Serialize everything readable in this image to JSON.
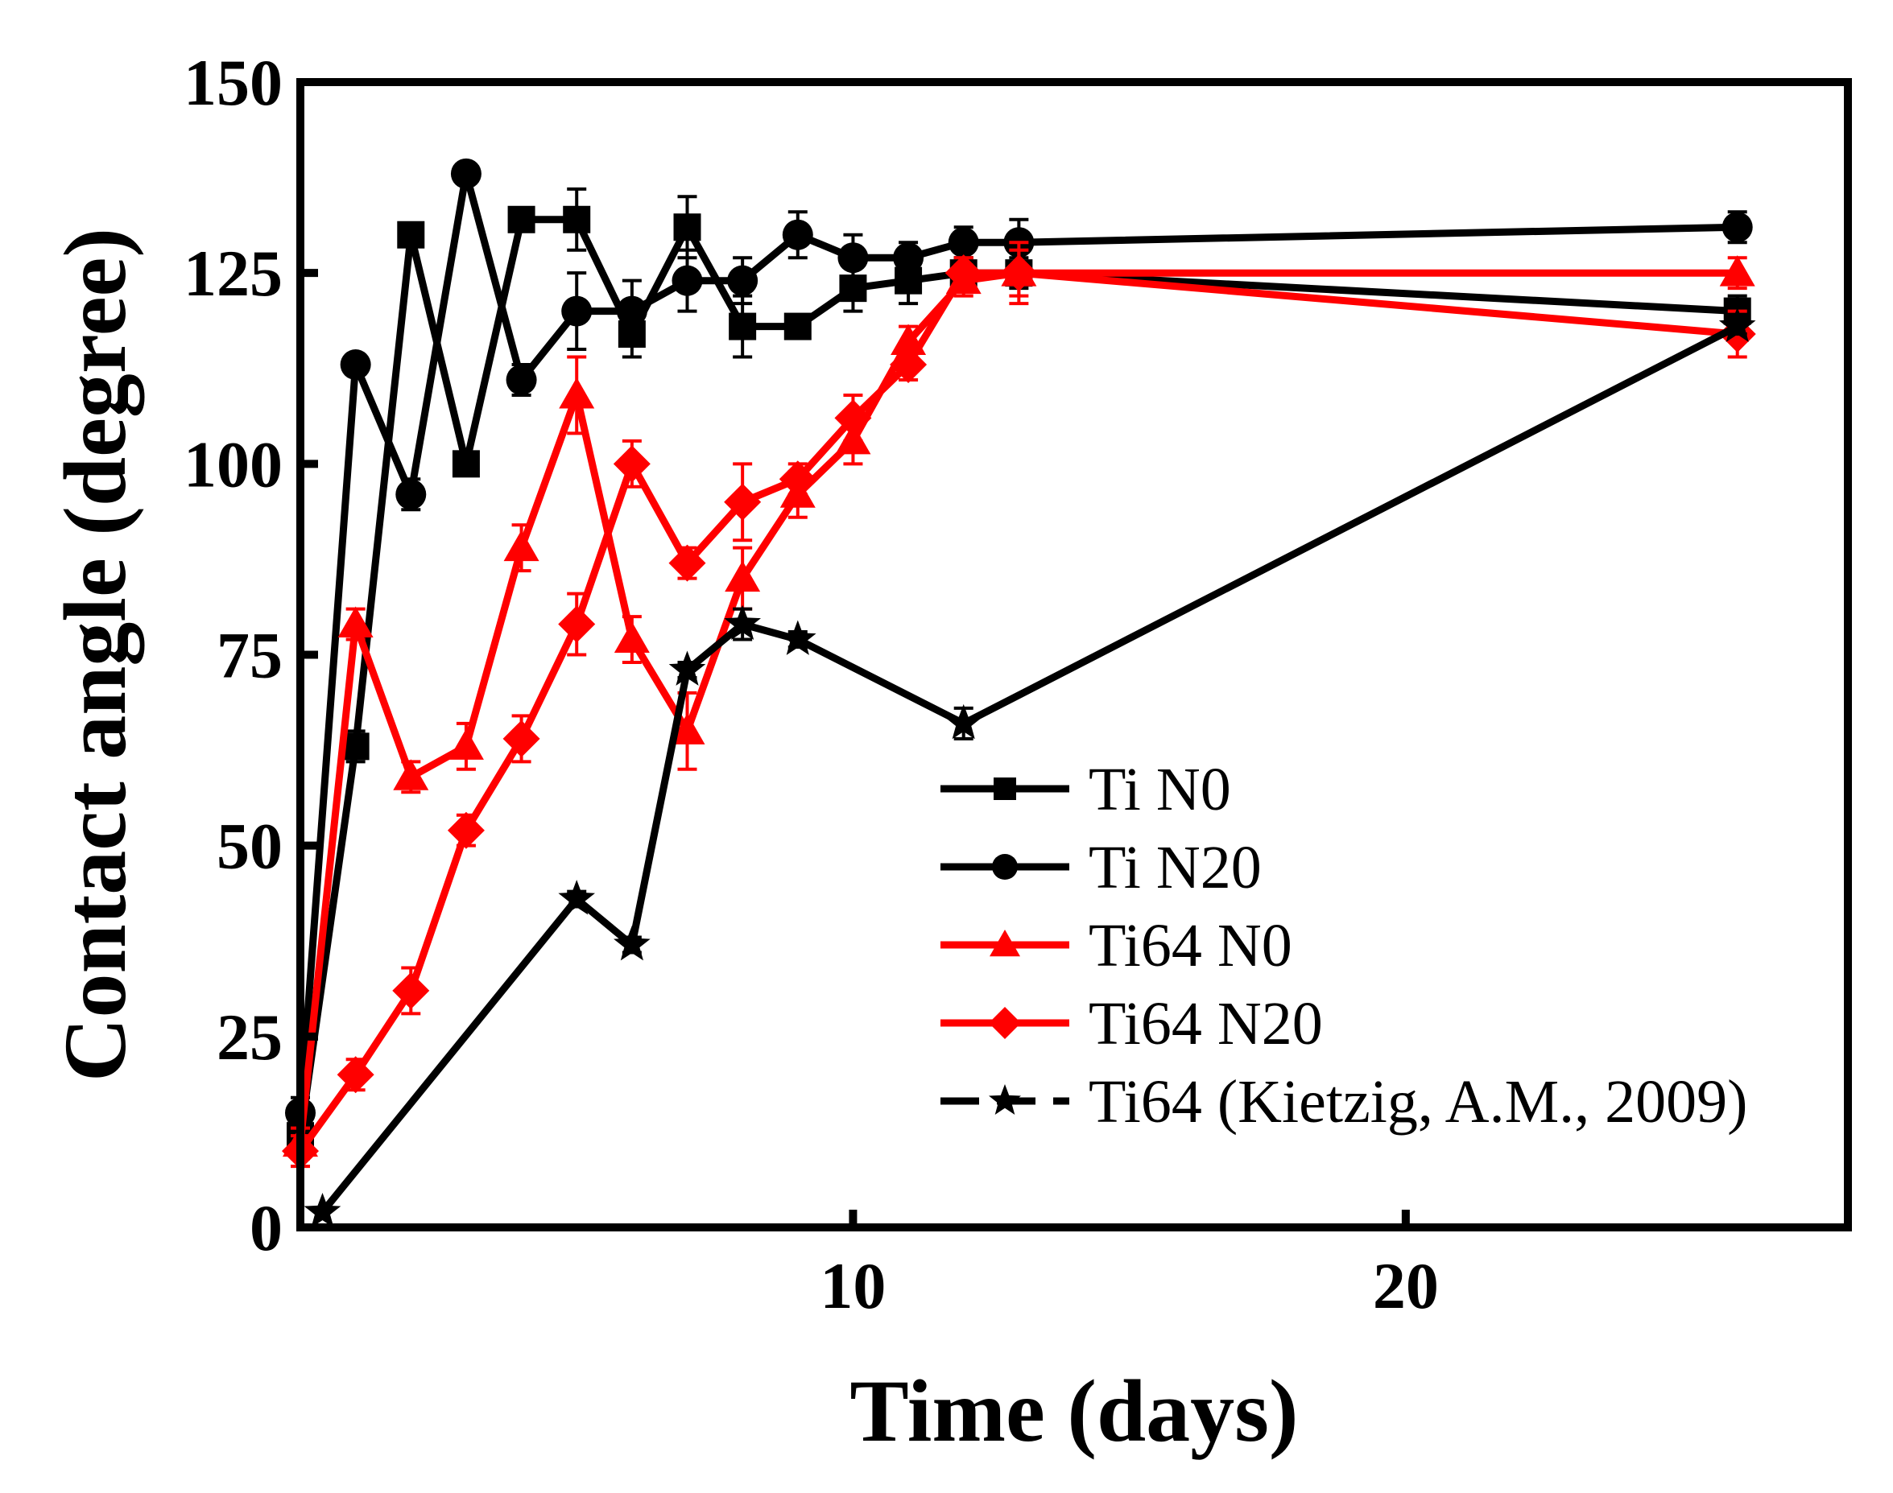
{
  "chart_data": {
    "type": "line",
    "title": "",
    "xlabel": "Time (days)",
    "ylabel": "Contact angle (degree)",
    "xlim": [
      0,
      28
    ],
    "ylim": [
      0,
      150
    ],
    "xticks": [
      10,
      20
    ],
    "yticks": [
      0,
      25,
      50,
      75,
      100,
      125,
      150
    ],
    "legend_position": "bottom-right",
    "series": [
      {
        "name": "Ti N0",
        "color": "#000000",
        "marker": "square",
        "dash": false,
        "x": [
          0,
          1,
          2,
          3,
          4,
          5,
          6,
          7,
          8,
          9,
          10,
          11,
          12,
          13,
          26
        ],
        "y": [
          12,
          63,
          130,
          100,
          132,
          132,
          117,
          131,
          118,
          118,
          123,
          124,
          125,
          125,
          120
        ],
        "err": [
          2,
          2,
          1,
          1,
          1,
          4,
          3,
          4,
          4,
          1,
          3,
          3,
          2,
          2,
          2
        ]
      },
      {
        "name": "Ti N20",
        "color": "#000000",
        "marker": "circle",
        "dash": false,
        "x": [
          0,
          1,
          2,
          3,
          4,
          5,
          6,
          7,
          8,
          9,
          10,
          11,
          12,
          13,
          26
        ],
        "y": [
          15,
          113,
          96,
          138,
          111,
          120,
          120,
          124,
          124,
          130,
          127,
          127,
          129,
          129,
          131
        ],
        "err": [
          2,
          1,
          2,
          1,
          2,
          5,
          4,
          4,
          3,
          3,
          3,
          2,
          2,
          3,
          2
        ]
      },
      {
        "name": "Ti64 N0",
        "color": "#ff0000",
        "marker": "triangle",
        "dash": false,
        "x": [
          0,
          1,
          2,
          3,
          4,
          5,
          6,
          7,
          8,
          9,
          10,
          11,
          12,
          13,
          26
        ],
        "y": [
          11,
          79,
          59,
          63,
          89,
          109,
          77,
          65,
          85,
          96,
          103,
          116,
          124,
          125,
          125
        ],
        "err": [
          2,
          2,
          2,
          3,
          3,
          5,
          3,
          5,
          4,
          3,
          3,
          2,
          2,
          3,
          2
        ]
      },
      {
        "name": "Ti64 N20",
        "color": "#ff0000",
        "marker": "diamond",
        "dash": false,
        "x": [
          0,
          1,
          2,
          3,
          4,
          5,
          6,
          7,
          8,
          9,
          10,
          11,
          12,
          13,
          26
        ],
        "y": [
          10,
          20,
          31,
          52,
          64,
          79,
          100,
          87,
          95,
          98,
          106,
          113,
          125,
          125,
          117
        ],
        "err": [
          2,
          2,
          3,
          2,
          3,
          4,
          3,
          2,
          5,
          2,
          3,
          2,
          2,
          4,
          3
        ]
      },
      {
        "name": "Ti64 (Kietzig, A.M., 2009)",
        "color": "#000000",
        "marker": "star",
        "dash": true,
        "x": [
          0.4,
          5,
          6,
          7,
          8,
          9,
          12,
          26
        ],
        "y": [
          2,
          43,
          37,
          73,
          79,
          77,
          66,
          118
        ],
        "err": [
          0,
          1,
          1,
          1,
          2,
          1,
          2,
          1
        ]
      }
    ]
  }
}
